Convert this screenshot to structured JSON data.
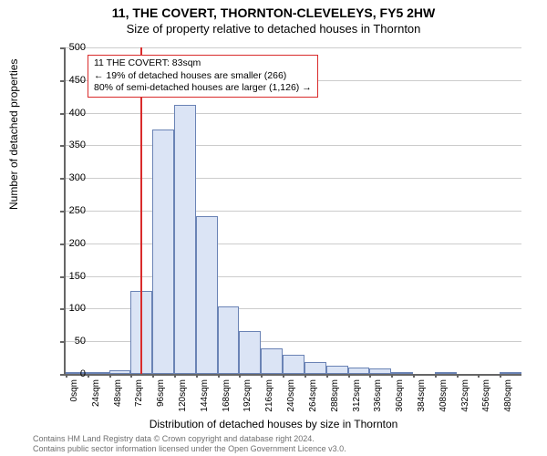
{
  "header": {
    "address": "11, THE COVERT, THORNTON-CLEVELEYS, FY5 2HW",
    "subtitle": "Size of property relative to detached houses in Thornton"
  },
  "chart": {
    "type": "histogram",
    "y_axis": {
      "label": "Number of detached properties",
      "min": 0,
      "max": 500,
      "tick_step": 50,
      "grid_color": "#cccccc",
      "axis_color": "#666666",
      "label_fontsize": 12,
      "tick_fontsize": 11
    },
    "x_axis": {
      "label": "Distribution of detached houses by size in Thornton",
      "unit_suffix": "sqm",
      "tick_values": [
        0,
        24,
        48,
        72,
        96,
        120,
        144,
        168,
        192,
        216,
        240,
        264,
        288,
        312,
        336,
        360,
        384,
        408,
        432,
        456,
        480
      ],
      "label_fontsize": 12,
      "tick_fontsize": 10
    },
    "bars": {
      "fill_color": "#dbe4f5",
      "border_color": "#6a83b5",
      "values": [
        1,
        3,
        5,
        127,
        375,
        412,
        242,
        103,
        65,
        39,
        30,
        18,
        12,
        10,
        8,
        3,
        0,
        1,
        0,
        0,
        1
      ]
    },
    "marker": {
      "value_sqm": 83,
      "color": "#d92b2b",
      "annotation": {
        "line1": "11 THE COVERT: 83sqm",
        "line2": "← 19% of detached houses are smaller (266)",
        "line3": "80% of semi-detached houses are larger (1,126) →",
        "border_color": "#d92b2b",
        "background": "#ffffff",
        "fontsize": 10.5
      }
    },
    "background_color": "#ffffff"
  },
  "footer": {
    "line1": "Contains HM Land Registry data © Crown copyright and database right 2024.",
    "line2": "Contains public sector information licensed under the Open Government Licence v3.0."
  }
}
